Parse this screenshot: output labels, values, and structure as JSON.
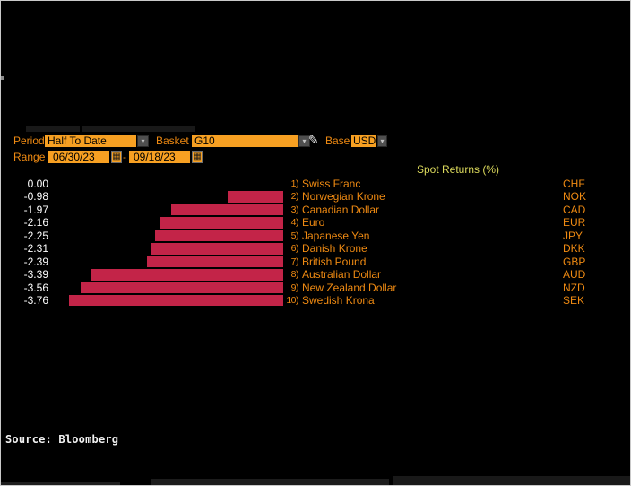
{
  "toolbar": {
    "period": {
      "label": "Period",
      "value": "Half To Date"
    },
    "basket": {
      "label": "Basket",
      "value": "G10"
    },
    "base": {
      "label": "Base",
      "value": "USD"
    },
    "range": {
      "label": "Range",
      "start": "06/30/23",
      "separator": "-",
      "end": "09/18/23"
    }
  },
  "icons": {
    "dropdown_arrow": "▾",
    "calendar": "▦",
    "pencil": "✎"
  },
  "chart_data": {
    "type": "bar",
    "orientation": "horizontal",
    "title": "Spot Returns (%)",
    "xlim": [
      -4,
      0
    ],
    "grid": false,
    "legend": "none",
    "bar_color": "#c32448",
    "categories": [
      "Swiss Franc",
      "Norwegian Krone",
      "Canadian Dollar",
      "Euro",
      "Japanese Yen",
      "Danish Krone",
      "British Pound",
      "Australian Dollar",
      "New Zealand Dollar",
      "Swedish Krona"
    ],
    "values": [
      0.0,
      -0.98,
      -1.97,
      -2.16,
      -2.25,
      -2.31,
      -2.39,
      -3.39,
      -3.56,
      -3.76
    ],
    "rows": [
      {
        "rank": "1)",
        "name": "Swiss Franc",
        "code": "CHF",
        "value": 0.0,
        "value_label": "0.00"
      },
      {
        "rank": "2)",
        "name": "Norwegian Krone",
        "code": "NOK",
        "value": -0.98,
        "value_label": "-0.98"
      },
      {
        "rank": "3)",
        "name": "Canadian Dollar",
        "code": "CAD",
        "value": -1.97,
        "value_label": "-1.97"
      },
      {
        "rank": "4)",
        "name": "Euro",
        "code": "EUR",
        "value": -2.16,
        "value_label": "-2.16"
      },
      {
        "rank": "5)",
        "name": "Japanese Yen",
        "code": "JPY",
        "value": -2.25,
        "value_label": "-2.25"
      },
      {
        "rank": "6)",
        "name": "Danish Krone",
        "code": "DKK",
        "value": -2.31,
        "value_label": "-2.31"
      },
      {
        "rank": "7)",
        "name": "British Pound",
        "code": "GBP",
        "value": -2.39,
        "value_label": "-2.39"
      },
      {
        "rank": "8)",
        "name": "Australian Dollar",
        "code": "AUD",
        "value": -3.39,
        "value_label": "-3.39"
      },
      {
        "rank": "9)",
        "name": "New Zealand Dollar",
        "code": "NZD",
        "value": -3.56,
        "value_label": "-3.56"
      },
      {
        "rank": "10)",
        "name": "Swedish Krona",
        "code": "SEK",
        "value": -3.76,
        "value_label": "-3.76"
      }
    ]
  },
  "footer": {
    "source": "Source: Bloomberg"
  },
  "colors": {
    "background": "#000000",
    "accent_orange_text": "#ef8a12",
    "control_orange_bg": "#f7a022",
    "bar_red": "#c32448",
    "title_yellow": "#dcda5c",
    "value_text": "#ffffff"
  }
}
